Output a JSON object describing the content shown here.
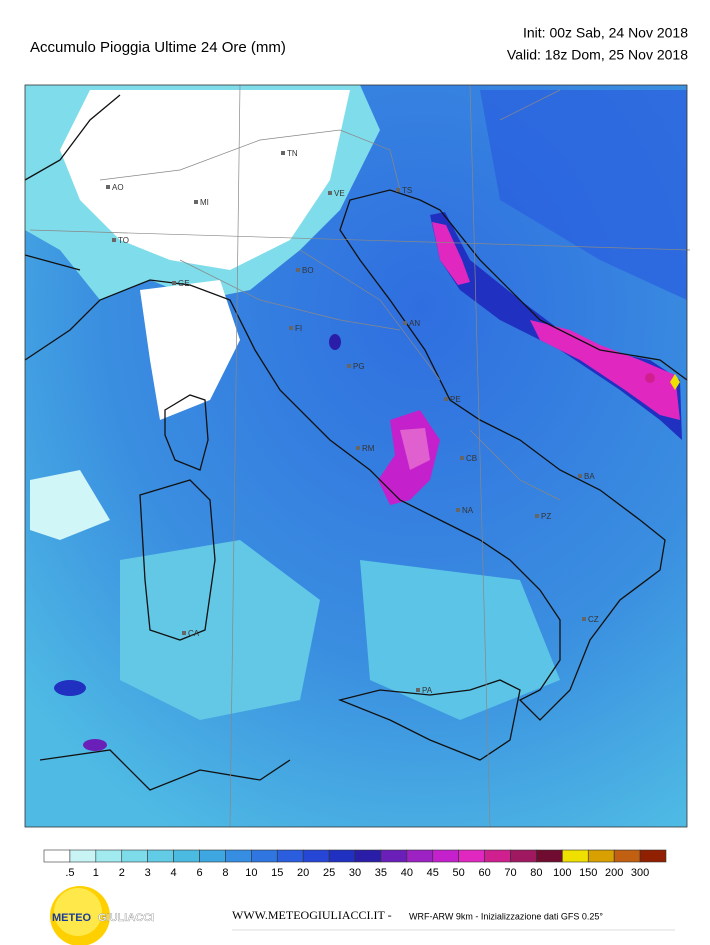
{
  "header": {
    "title": "Accumulo Pioggia Ultime 24 Ore   (mm)",
    "init": "Init: 00z Sab, 24 Nov 2018",
    "valid": "Valid: 18z Dom, 25 Nov 2018"
  },
  "cities": [
    "AO",
    "MI",
    "TN",
    "VE",
    "TS",
    "TO",
    "GE",
    "BO",
    "FI",
    "AN",
    "PG",
    "PE",
    "RM",
    "CB",
    "BA",
    "NA",
    "PZ",
    "CZ",
    "CA",
    "PA"
  ],
  "legend": {
    "labels": [
      ".5",
      "1",
      "2",
      "3",
      "4",
      "6",
      "8",
      "10",
      "15",
      "20",
      "25",
      "30",
      "35",
      "40",
      "45",
      "50",
      "60",
      "70",
      "80",
      "100",
      "150",
      "200",
      "300"
    ],
    "colors": [
      "#ffffff",
      "#c8f4f6",
      "#a0eaf0",
      "#7edcea",
      "#62cce6",
      "#4cbbe2",
      "#3ea6e0",
      "#368ee2",
      "#2f76e0",
      "#2a5ede",
      "#2646d6",
      "#2030c0",
      "#2a1ea8",
      "#6a20b8",
      "#9c22c4",
      "#c420cc",
      "#e028c0",
      "#d02090",
      "#a01860",
      "#700c30",
      "#f0e000",
      "#d8a000",
      "#c06010",
      "#902000"
    ]
  },
  "footer": {
    "logo_a": "METEO",
    "logo_b": "GIULIACCI",
    "site": "WWW.METEOGIULIACCI.IT - ",
    "model": "WRF-ARW 9km - Inizializzazione dati GFS 0.25°"
  }
}
